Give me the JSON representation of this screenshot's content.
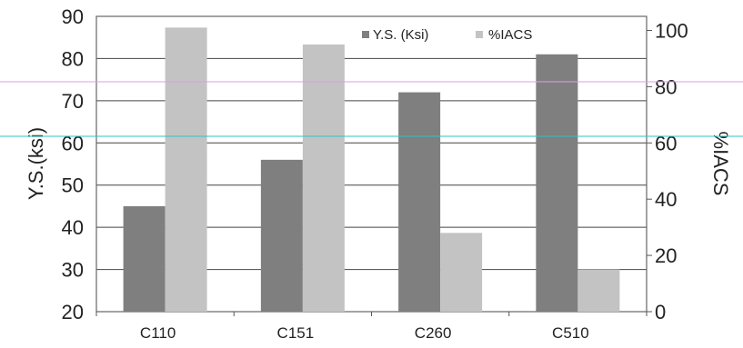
{
  "chart_data": {
    "type": "bar",
    "categories": [
      "C110",
      "C151",
      "C260",
      "C510"
    ],
    "series": [
      {
        "name": "Y.S. (Ksi)",
        "axis": "left",
        "color": "#7f7f7f",
        "values": [
          45,
          56,
          72,
          81
        ]
      },
      {
        "name": "%IACS",
        "axis": "right",
        "color": "#c3c3c3",
        "values": [
          101,
          95,
          28,
          15
        ]
      }
    ],
    "ylabel_left": "Y.S.(ksi)",
    "ylabel_right": "%IACS",
    "ylim_left": [
      20,
      90
    ],
    "ylim_right": [
      0,
      105
    ],
    "yticks_left": [
      "20",
      "30",
      "40",
      "50",
      "60",
      "70",
      "80",
      "90"
    ],
    "yticks_right": [
      "0",
      "20",
      "40",
      "60",
      "80",
      "100"
    ],
    "legend": [
      "Y.S. (Ksi)",
      "%IACS"
    ],
    "legend_position": "top-right",
    "grid": true
  },
  "overlay_lines": {
    "pink": "#e29be6",
    "cyan": "#2fc6c0"
  }
}
